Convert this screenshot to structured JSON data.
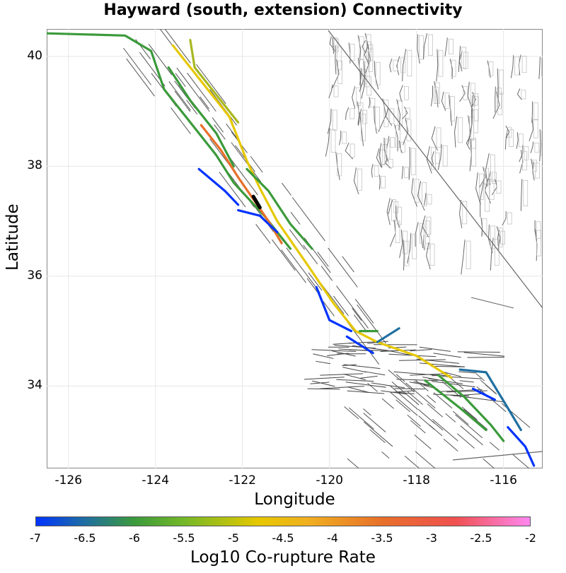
{
  "title": "Hayward (south, extension) Connectivity",
  "map": {
    "xlabel": "Longitude",
    "ylabel": "Latitude",
    "xlim": [
      -126.5,
      -115.1
    ],
    "ylim": [
      32.5,
      40.5
    ],
    "xticks": [
      "-126",
      "-124",
      "-122",
      "-120",
      "-118",
      "-116"
    ],
    "xtick_values": [
      -126,
      -124,
      -122,
      -120,
      -118,
      -116
    ],
    "yticks": [
      "40",
      "38",
      "36",
      "34"
    ],
    "ytick_values": [
      40,
      38,
      36,
      34
    ],
    "grid": true
  },
  "colorbar": {
    "label": "Log10 Co-rupture Rate",
    "ticks": [
      "-7",
      "-6.5",
      "-6",
      "-5.5",
      "-5",
      "-4.5",
      "-4",
      "-3.5",
      "-3",
      "-2.5",
      "-2"
    ],
    "range": [
      -7,
      -2
    ],
    "colors": [
      "#0033ff",
      "#1f6fa0",
      "#3b9a3b",
      "#74b828",
      "#e6c800",
      "#f0b020",
      "#e8702a",
      "#f05050",
      "#ff88f0"
    ]
  },
  "fault_traces": [
    {
      "name": "northern-coast-trace",
      "rate": -5.9,
      "color": "#3b9a3b",
      "points": [
        [
          -126.5,
          40.42
        ],
        [
          -124.7,
          40.38
        ],
        [
          -124.1,
          40.1
        ],
        [
          -123.8,
          39.4
        ],
        [
          -123.3,
          38.9
        ],
        [
          -122.6,
          38.2
        ],
        [
          -122.2,
          37.7
        ],
        [
          -121.5,
          37.1
        ],
        [
          -120.9,
          36.5
        ]
      ]
    },
    {
      "name": "maacama-trace",
      "rate": -5.8,
      "color": "#3b9a3b",
      "points": [
        [
          -123.7,
          39.8
        ],
        [
          -123.2,
          39.2
        ],
        [
          -122.6,
          38.6
        ],
        [
          -122.2,
          38.0
        ]
      ]
    },
    {
      "name": "inner-yellow-trace",
      "rate": -4.6,
      "color": "#e6c800",
      "points": [
        [
          -123.6,
          40.2
        ],
        [
          -122.9,
          39.5
        ],
        [
          -122.3,
          38.9
        ],
        [
          -121.9,
          38.1
        ],
        [
          -121.6,
          37.6
        ],
        [
          -121.2,
          37.0
        ],
        [
          -120.5,
          36.2
        ],
        [
          -119.9,
          35.5
        ],
        [
          -119.4,
          35.0
        ],
        [
          -118.9,
          34.8
        ],
        [
          -118.0,
          34.55
        ],
        [
          -117.2,
          34.15
        ]
      ]
    },
    {
      "name": "olive-north-trace",
      "rate": -5.2,
      "color": "#a8b820",
      "points": [
        [
          -123.2,
          40.3
        ],
        [
          -123.1,
          39.8
        ],
        [
          -122.5,
          39.2
        ],
        [
          -122.1,
          38.8
        ]
      ]
    },
    {
      "name": "hayward-orange-trace",
      "rate": -3.2,
      "color": "#e8702a",
      "points": [
        [
          -122.95,
          38.75
        ],
        [
          -122.5,
          38.3
        ],
        [
          -122.1,
          37.8
        ],
        [
          -121.75,
          37.4
        ],
        [
          -121.4,
          37.0
        ],
        [
          -121.1,
          36.6
        ]
      ]
    },
    {
      "name": "hayward-black-core",
      "rate": -2.0,
      "color": "#000000",
      "points": [
        [
          -121.75,
          37.45
        ],
        [
          -121.6,
          37.25
        ]
      ]
    },
    {
      "name": "calaveras-green-trace",
      "rate": -5.6,
      "color": "#3b9a3b",
      "points": [
        [
          -121.9,
          37.95
        ],
        [
          -121.4,
          37.55
        ],
        [
          -120.9,
          36.95
        ],
        [
          -120.4,
          36.5
        ]
      ]
    },
    {
      "name": "bay-blue-trace",
      "rate": -6.9,
      "color": "#0033ff",
      "points": [
        [
          -123.0,
          37.95
        ],
        [
          -122.4,
          37.55
        ],
        [
          -122.1,
          37.3
        ]
      ]
    },
    {
      "name": "san-gregorio-blue",
      "rate": -6.9,
      "color": "#0033ff",
      "points": [
        [
          -122.1,
          37.2
        ],
        [
          -121.6,
          37.1
        ],
        [
          -121.2,
          36.8
        ]
      ]
    },
    {
      "name": "sgmid-blue-trace",
      "rate": -6.9,
      "color": "#0033ff",
      "points": [
        [
          -120.3,
          35.8
        ],
        [
          -120.0,
          35.2
        ],
        [
          -119.5,
          35.0
        ]
      ]
    },
    {
      "name": "garlock-green",
      "rate": -5.7,
      "color": "#3b9a3b",
      "points": [
        [
          -119.3,
          35.0
        ],
        [
          -118.9,
          35.0
        ]
      ]
    },
    {
      "name": "garlock-teal",
      "rate": -6.3,
      "color": "#1f6fa0",
      "points": [
        [
          -118.9,
          34.8
        ],
        [
          -118.4,
          35.05
        ]
      ]
    },
    {
      "name": "bigbend-blue",
      "rate": -6.9,
      "color": "#0033ff",
      "points": [
        [
          -119.6,
          34.9
        ],
        [
          -119.0,
          34.6
        ]
      ]
    },
    {
      "name": "sanjacinto-green",
      "rate": -5.6,
      "color": "#3b9a3b",
      "points": [
        [
          -117.5,
          34.2
        ],
        [
          -116.9,
          33.8
        ],
        [
          -116.3,
          33.3
        ],
        [
          -116.0,
          33.0
        ]
      ]
    },
    {
      "name": "elsinore-green",
      "rate": -5.6,
      "color": "#3b9a3b",
      "points": [
        [
          -117.8,
          34.1
        ],
        [
          -117.0,
          33.6
        ],
        [
          -116.4,
          33.2
        ]
      ]
    },
    {
      "name": "south-teal-trace",
      "rate": -6.2,
      "color": "#1f6fa0",
      "points": [
        [
          -117.0,
          34.3
        ],
        [
          -116.4,
          34.25
        ],
        [
          -115.9,
          33.6
        ],
        [
          -115.6,
          33.2
        ]
      ]
    },
    {
      "name": "imperial-blue",
      "rate": -6.9,
      "color": "#0033ff",
      "points": [
        [
          -115.9,
          33.25
        ],
        [
          -115.5,
          32.9
        ],
        [
          -115.3,
          32.55
        ]
      ]
    },
    {
      "name": "south-blue-short",
      "rate": -6.9,
      "color": "#0033ff",
      "points": [
        [
          -116.7,
          33.95
        ],
        [
          -116.2,
          33.75
        ]
      ]
    }
  ]
}
